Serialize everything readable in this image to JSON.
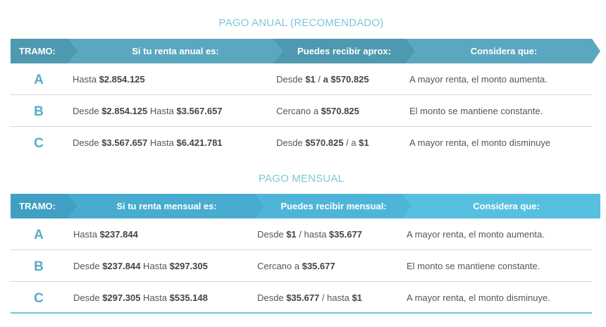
{
  "anual": {
    "title": "PAGO ANUAL (RECOMENDADO)",
    "headers": [
      "TRAMO:",
      "Si tu renta anual es:",
      "Puedes recibir aprox:",
      "Considera que:"
    ],
    "colors": [
      "#4e99af",
      "#5aa7bf",
      "#4e99af",
      "#5aa7bf"
    ],
    "rows": [
      {
        "tramo": "A",
        "renta": [
          {
            "t": "Hasta "
          },
          {
            "b": "$2.854.125"
          }
        ],
        "recibir": [
          {
            "t": "Desde "
          },
          {
            "b": "$1"
          },
          {
            "t": " / "
          },
          {
            "b": "a $570.825"
          }
        ],
        "considera": "A mayor renta, el monto aumenta."
      },
      {
        "tramo": "B",
        "renta": [
          {
            "t": "Desde "
          },
          {
            "b": "$2.854.125"
          },
          {
            "t": " Hasta "
          },
          {
            "b": "$3.567.657"
          }
        ],
        "recibir": [
          {
            "t": "Cercano a "
          },
          {
            "b": "$570.825"
          }
        ],
        "considera": "El monto se mantiene constante."
      },
      {
        "tramo": "C",
        "renta": [
          {
            "t": "Desde "
          },
          {
            "b": "$3.567.657"
          },
          {
            "t": " Hasta "
          },
          {
            "b": "$6.421.781"
          }
        ],
        "recibir": [
          {
            "t": "Desde "
          },
          {
            "b": "$570.825"
          },
          {
            "t": " / a "
          },
          {
            "b": "$1"
          }
        ],
        "considera": "A mayor renta, el monto disminuye"
      }
    ]
  },
  "mensual": {
    "title": "PAGO MENSUAL",
    "headers": [
      "TRAMO:",
      "Si tu renta mensual es:",
      "Puedes recibir mensual:",
      "Considera que:"
    ],
    "colors": [
      "#3fa0c4",
      "#48acd0",
      "#4fb5d8",
      "#57bfe0"
    ],
    "rows": [
      {
        "tramo": "A",
        "renta": [
          {
            "t": "Hasta "
          },
          {
            "b": "$237.844"
          }
        ],
        "recibir": [
          {
            "t": "Desde "
          },
          {
            "b": "$1"
          },
          {
            "t": " / hasta "
          },
          {
            "b": "$35.677"
          }
        ],
        "considera": "A mayor renta, el monto aumenta."
      },
      {
        "tramo": "B",
        "renta": [
          {
            "t": "Desde "
          },
          {
            "b": "$237.844"
          },
          {
            "t": " Hasta "
          },
          {
            "b": "$297.305"
          }
        ],
        "recibir": [
          {
            "t": "Cercano a "
          },
          {
            "b": "$35.677"
          }
        ],
        "considera": "El monto se mantiene constante."
      },
      {
        "tramo": "C",
        "renta": [
          {
            "t": "Desde "
          },
          {
            "b": "$297.305"
          },
          {
            "t": " Hasta "
          },
          {
            "b": "$535.148"
          }
        ],
        "recibir": [
          {
            "t": "Desde "
          },
          {
            "b": "$35.677"
          },
          {
            "t": " / hasta "
          },
          {
            "b": "$1"
          }
        ],
        "considera": "A mayor renta, el monto disminuye."
      }
    ]
  }
}
